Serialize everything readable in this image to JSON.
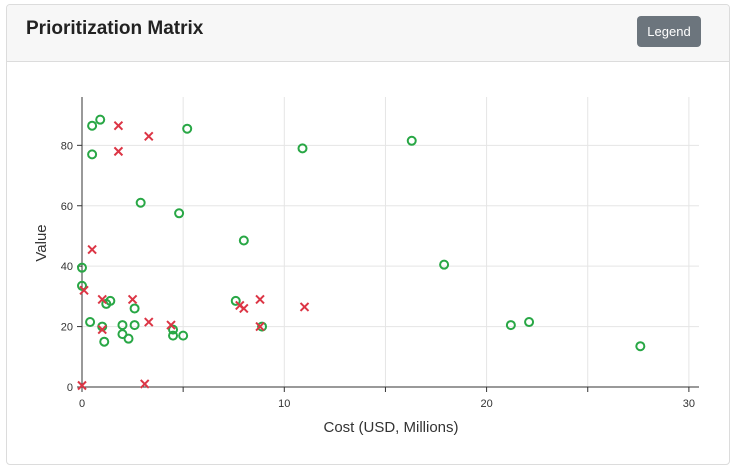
{
  "card": {
    "title": "Prioritization Matrix",
    "legend_button": "Legend"
  },
  "colors": {
    "circle_series": "#28a745",
    "cross_series": "#dc3545",
    "grid": "#e5e5e5",
    "axis": "#333333",
    "button_bg": "#6c757d"
  },
  "chart_data": {
    "type": "scatter",
    "title": "",
    "xlabel": "Cost (USD, Millions)",
    "ylabel": "Value",
    "xlim": [
      0,
      30.5
    ],
    "ylim": [
      0,
      96
    ],
    "xticks": [
      0,
      10,
      20,
      30
    ],
    "yticks": [
      0,
      20,
      40,
      60,
      80
    ],
    "grid": true,
    "series": [
      {
        "marker": "circle",
        "color": "#28a745",
        "points": [
          [
            0.0,
            39.5
          ],
          [
            0.0,
            33.5
          ],
          [
            0.4,
            21.5
          ],
          [
            0.5,
            86.5
          ],
          [
            0.5,
            77.0
          ],
          [
            0.9,
            88.5
          ],
          [
            1.0,
            20.0
          ],
          [
            1.1,
            15.0
          ],
          [
            1.2,
            27.5
          ],
          [
            1.4,
            28.5
          ],
          [
            2.0,
            17.5
          ],
          [
            2.0,
            20.5
          ],
          [
            2.3,
            16.0
          ],
          [
            2.6,
            26.0
          ],
          [
            2.6,
            20.5
          ],
          [
            2.9,
            61.0
          ],
          [
            4.5,
            19.0
          ],
          [
            4.5,
            17.0
          ],
          [
            4.8,
            57.5
          ],
          [
            5.0,
            17.0
          ],
          [
            5.2,
            85.5
          ],
          [
            7.6,
            28.5
          ],
          [
            8.0,
            48.5
          ],
          [
            8.9,
            20.0
          ],
          [
            10.9,
            79.0
          ],
          [
            16.3,
            81.5
          ],
          [
            17.9,
            40.5
          ],
          [
            21.2,
            20.5
          ],
          [
            22.1,
            21.5
          ],
          [
            27.6,
            13.5
          ]
        ]
      },
      {
        "marker": "cross",
        "color": "#dc3545",
        "points": [
          [
            0.0,
            0.5
          ],
          [
            0.1,
            32.0
          ],
          [
            0.5,
            45.5
          ],
          [
            1.0,
            29.0
          ],
          [
            1.0,
            19.0
          ],
          [
            1.8,
            86.5
          ],
          [
            1.8,
            78.0
          ],
          [
            2.5,
            29.0
          ],
          [
            3.1,
            1.0
          ],
          [
            3.3,
            83.0
          ],
          [
            3.3,
            21.5
          ],
          [
            4.4,
            20.5
          ],
          [
            7.8,
            27.0
          ],
          [
            8.0,
            26.0
          ],
          [
            8.8,
            29.0
          ],
          [
            8.8,
            20.0
          ],
          [
            11.0,
            26.5
          ]
        ]
      }
    ]
  }
}
